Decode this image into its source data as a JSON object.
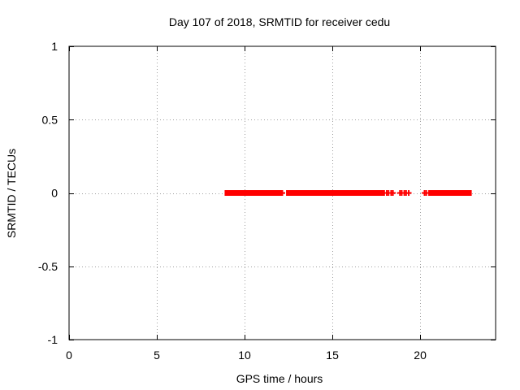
{
  "chart_data": {
    "type": "scatter",
    "title": "Day 107 of 2018, SRMTID for receiver cedu",
    "xlabel": "GPS time / hours",
    "ylabel": "SRMTID / TECUs",
    "xlim": [
      0,
      24.3
    ],
    "ylim": [
      -1,
      1
    ],
    "x_ticks": [
      "0",
      "5",
      "10",
      "15",
      "20"
    ],
    "x_tick_values": [
      0,
      5,
      10,
      15,
      20
    ],
    "y_ticks": [
      "1",
      "0.5",
      "0",
      "-0.5",
      "-1"
    ],
    "y_tick_values": [
      1,
      0.5,
      0,
      -0.5,
      -1
    ],
    "grid": true,
    "series": [
      {
        "name": "SRMTID",
        "color": "#ff0000",
        "marker": "plus",
        "segments": [
          {
            "x_start": 9.0,
            "x_end": 12.0,
            "y": 0
          },
          {
            "x_start": 12.5,
            "x_end": 17.8,
            "y": 0
          },
          {
            "x_start": 20.6,
            "x_end": 22.8,
            "y": 0
          }
        ],
        "points": [
          {
            "x": 12.15,
            "y": 0
          },
          {
            "x": 17.95,
            "y": 0
          },
          {
            "x": 18.1,
            "y": 0
          },
          {
            "x": 18.2,
            "y": 0
          },
          {
            "x": 18.35,
            "y": 0
          },
          {
            "x": 18.45,
            "y": 0
          },
          {
            "x": 18.85,
            "y": 0
          },
          {
            "x": 18.95,
            "y": 0
          },
          {
            "x": 19.1,
            "y": 0
          },
          {
            "x": 19.2,
            "y": 0
          },
          {
            "x": 19.35,
            "y": 0
          },
          {
            "x": 20.25,
            "y": 0
          },
          {
            "x": 20.35,
            "y": 0
          }
        ]
      }
    ]
  }
}
